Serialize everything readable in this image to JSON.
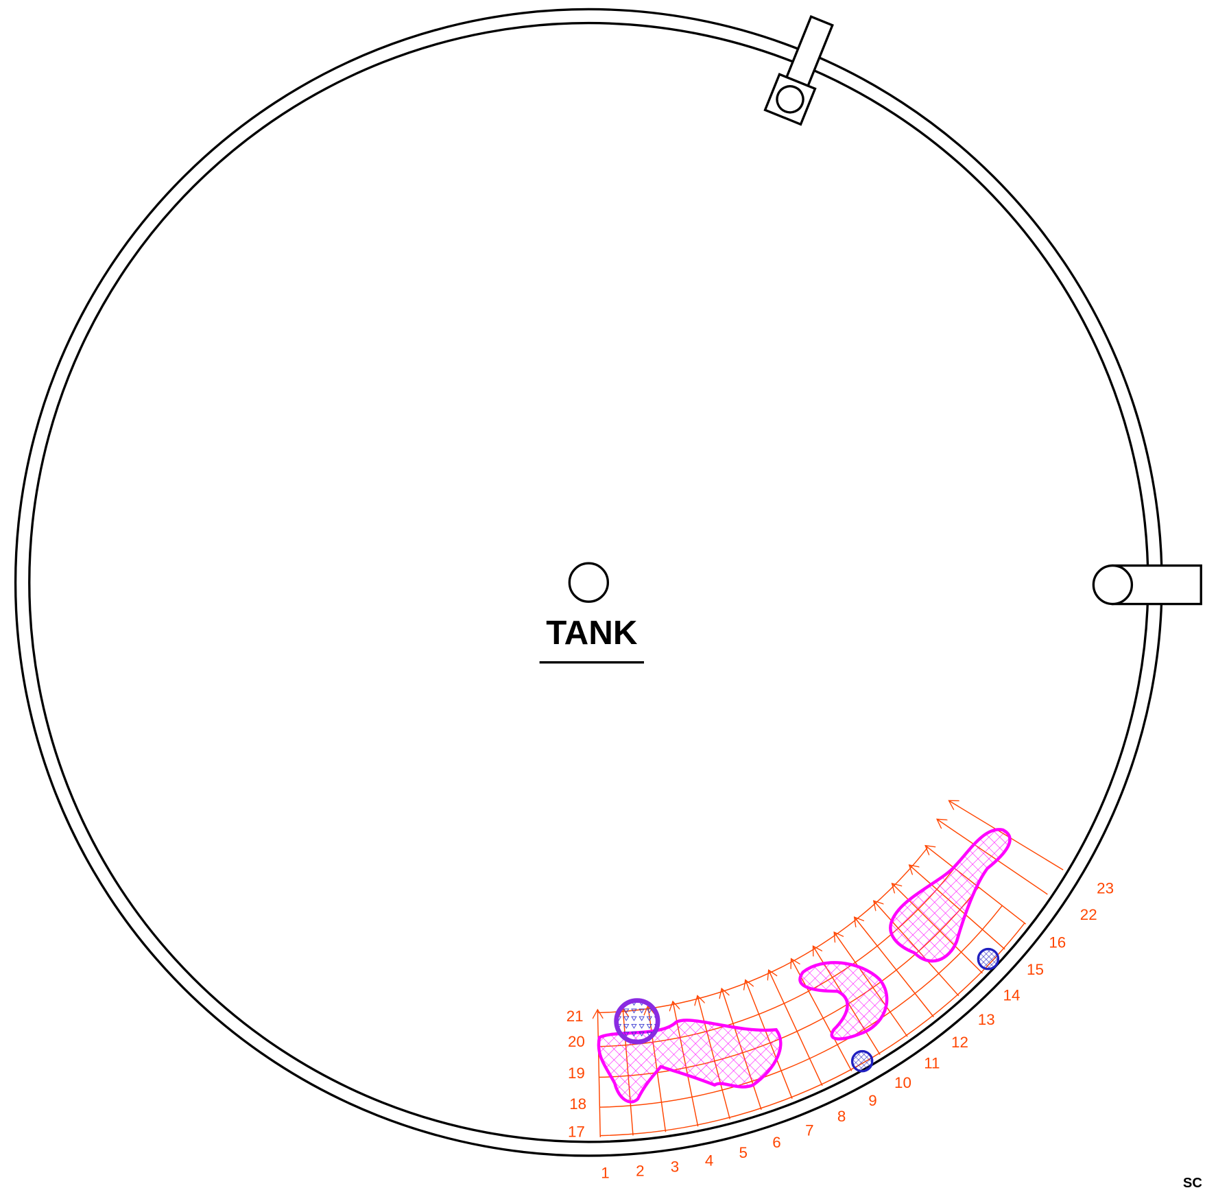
{
  "title": "TANK",
  "grid_labels": [
    "1",
    "2",
    "3",
    "4",
    "5",
    "6",
    "7",
    "8",
    "9",
    "10",
    "11",
    "12",
    "13",
    "14",
    "15",
    "16",
    "17",
    "18",
    "19",
    "20",
    "21",
    "22",
    "23"
  ],
  "corner_text": "SC"
}
